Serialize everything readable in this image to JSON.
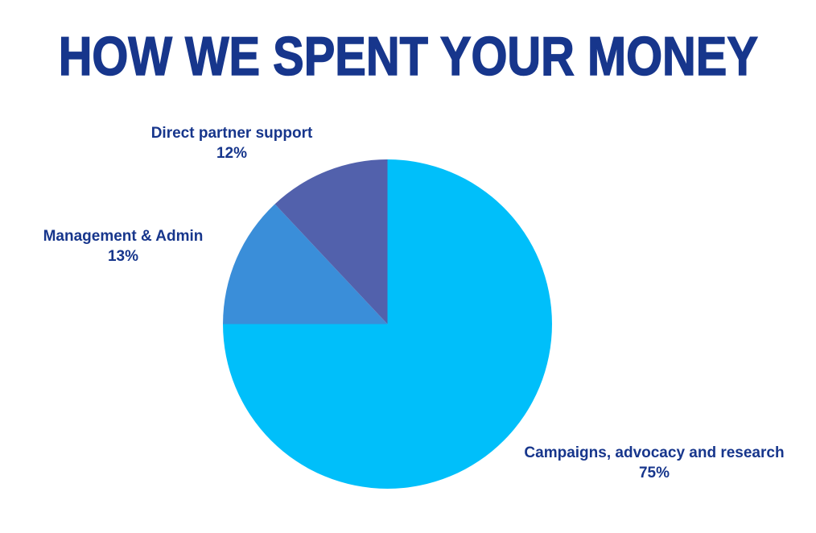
{
  "page": {
    "background_color": "#ffffff",
    "text_color": "#17368C"
  },
  "title": {
    "text": "HOW WE SPENT YOUR MONEY",
    "color": "#17368C"
  },
  "chart_data": {
    "type": "pie",
    "title": "HOW WE SPENT YOUR MONEY",
    "start_angle_deg": 0,
    "direction": "clockwise",
    "legend": "none",
    "label_color": "#17368C",
    "slices": [
      {
        "label": "Campaigns, advocacy and research",
        "value": 75,
        "display_value": "75%",
        "color": "#00BFFA"
      },
      {
        "label": "Management & Admin",
        "value": 13,
        "display_value": "13%",
        "color": "#3A8ED9"
      },
      {
        "label": "Direct partner support",
        "value": 12,
        "display_value": "12%",
        "color": "#5261AC"
      }
    ]
  }
}
